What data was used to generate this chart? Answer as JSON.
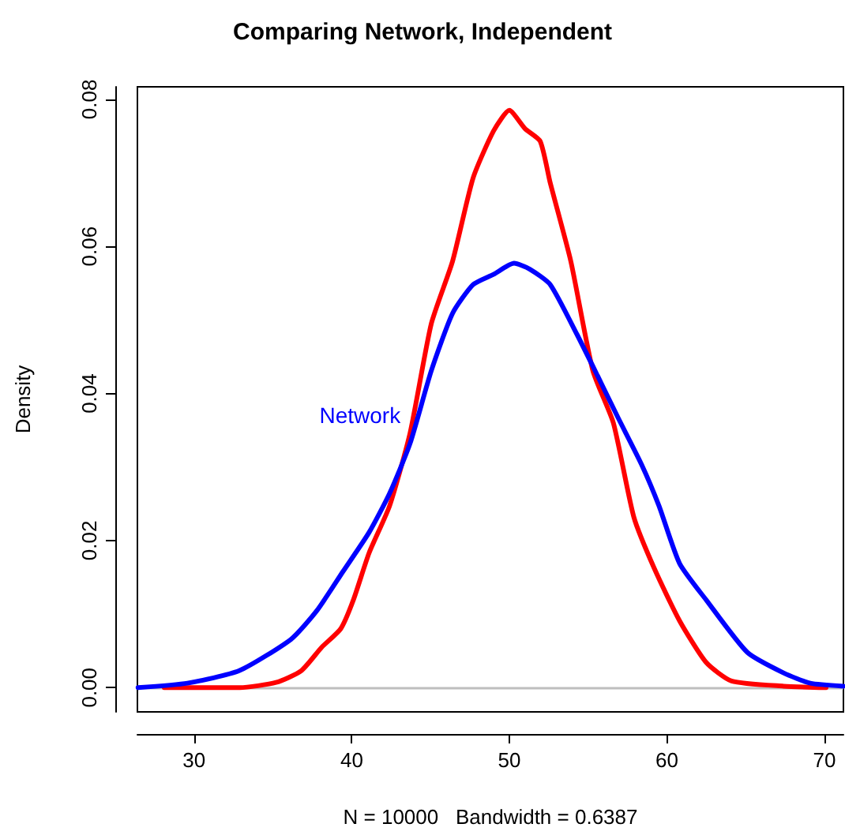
{
  "chart_data": {
    "type": "line",
    "title": "Comparing Network, Independent",
    "xlabel": "N = 10000   Bandwidth = 0.6387",
    "ylabel": "Density",
    "xlim": [
      26.4,
      71.2
    ],
    "xticks": [
      30,
      40,
      50,
      60,
      70
    ],
    "ylim": [
      -0.0033,
      0.0817
    ],
    "yticks": [
      {
        "value": 0,
        "label": "0.00"
      },
      {
        "value": 0.02,
        "label": "0.02"
      },
      {
        "value": 0.04,
        "label": "0.04"
      },
      {
        "value": 0.06,
        "label": "0.06"
      },
      {
        "value": 0.08,
        "label": "0.08"
      }
    ],
    "grid": false,
    "legend": false,
    "marker": "none",
    "line_style": "solid",
    "ref_lines": [
      {
        "axis": "y",
        "value": 0,
        "color": "#bebebe"
      }
    ],
    "series": [
      {
        "color": "#ff0000",
        "x": [
          28.1,
          32.9,
          35.2,
          36.8,
          38.1,
          39.3,
          40.1,
          41.1,
          42.4,
          43.7,
          45.05,
          46.4,
          47.7,
          49.0,
          50.0,
          51.0,
          51.96,
          52.6,
          53.9,
          55.3,
          56.6,
          57.9,
          59.2,
          60.8,
          62.5,
          64.1,
          67.4,
          70.1
        ],
        "values": [
          0,
          0,
          0.0007,
          0.0023,
          0.0055,
          0.008,
          0.0119,
          0.0183,
          0.0247,
          0.0346,
          0.0495,
          0.058,
          0.0693,
          0.0757,
          0.0785,
          0.076,
          0.0743,
          0.0686,
          0.058,
          0.0431,
          0.036,
          0.0232,
          0.0162,
          0.0091,
          0.0034,
          0.0009,
          0.0002,
          0
        ]
      },
      {
        "name": "Network",
        "color": "#0000ff",
        "x": [
          26.44,
          29.57,
          32.86,
          36.16,
          37.8,
          39.45,
          41.1,
          42.4,
          43.7,
          45.05,
          46.4,
          47.7,
          49.0,
          50.3,
          51.3,
          52.6,
          54.3,
          55.6,
          56.9,
          58.4,
          59.5,
          60.8,
          62.5,
          65.1,
          67.4,
          69.1,
          71.2
        ],
        "values": [
          0,
          0.0006,
          0.0023,
          0.0066,
          0.0105,
          0.0158,
          0.0211,
          0.0264,
          0.0332,
          0.0431,
          0.0509,
          0.0548,
          0.0562,
          0.0577,
          0.0569,
          0.0548,
          0.048,
          0.0424,
          0.0367,
          0.0303,
          0.0247,
          0.0169,
          0.0119,
          0.0048,
          0.002,
          0.0006,
          0.0002
        ]
      }
    ]
  }
}
